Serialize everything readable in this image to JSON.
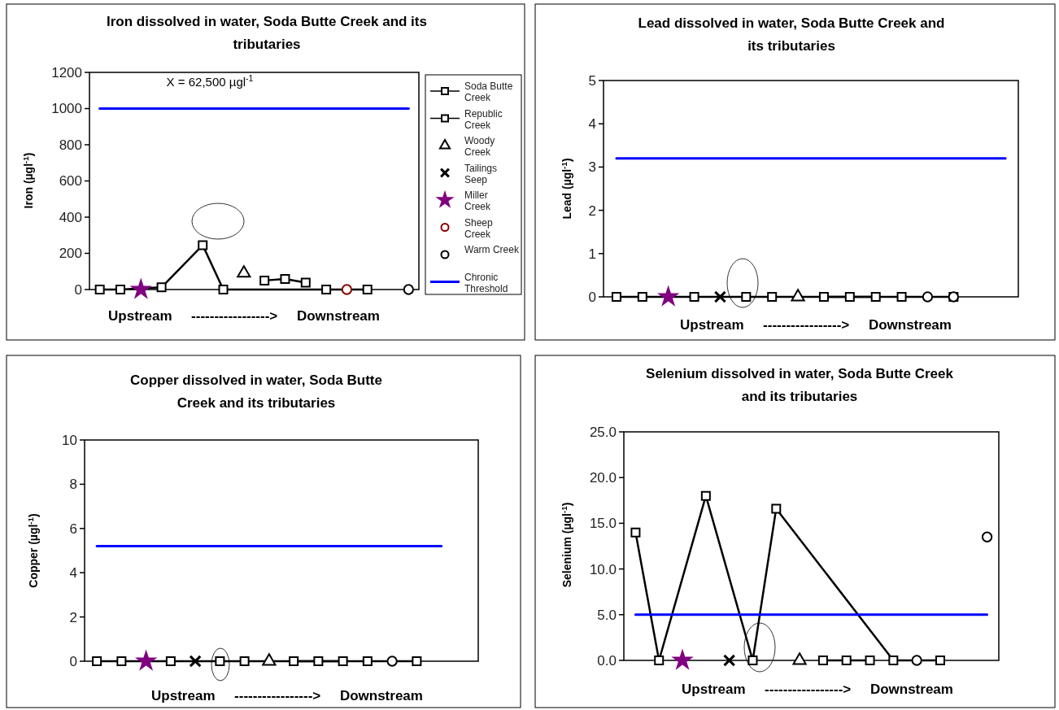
{
  "chart_data": [
    {
      "type": "line",
      "title": "Iron dissolved in water, Soda Butte Creek and its tributaries",
      "ylabel": "Iron (µgl$^{-1}$)",
      "xlabel": "Upstream     ----------------->     Downstream",
      "annotations": [
        "X = 62,500 µgl$^{-1}$"
      ],
      "categories": [
        null,
        null,
        null,
        null,
        null,
        null,
        null,
        null,
        null,
        null,
        null,
        null,
        null,
        null,
        null,
        null
      ],
      "ylim": [
        0,
        1200
      ],
      "yticks": [
        0,
        200,
        400,
        600,
        800,
        1000,
        1200
      ],
      "tick_labels": "y",
      "legend": "right",
      "series": [
        {
          "name": "Soda Butte Creek",
          "color": "#000000",
          "marker": "square",
          "values": [
            0,
            0,
            null,
            12,
            null,
            245,
            0,
            null,
            null,
            null,
            null,
            0,
            null,
            0,
            null,
            null
          ]
        },
        {
          "name": "Republic Creek",
          "color": "#000000",
          "marker": "square",
          "values": [
            null,
            null,
            null,
            null,
            null,
            null,
            null,
            null,
            50,
            58,
            38,
            null,
            null,
            null,
            null,
            null
          ]
        },
        {
          "name": "Woody Creek",
          "type": "scatter",
          "color": "#000000",
          "marker": "triangle",
          "values": [
            null,
            null,
            null,
            null,
            null,
            null,
            null,
            90,
            null,
            null,
            null,
            null,
            null,
            null,
            null,
            null
          ]
        },
        {
          "name": "Tailings Seep",
          "type": "scatter",
          "color": "#000000",
          "marker": "cross",
          "values": [
            null,
            null,
            null,
            null,
            null,
            null,
            null,
            null,
            null,
            null,
            null,
            null,
            null,
            null,
            null,
            null
          ]
        },
        {
          "name": "Miller Creek",
          "type": "scatter",
          "color": "#800080",
          "marker": "star",
          "values": [
            null,
            null,
            0,
            null,
            null,
            null,
            null,
            null,
            null,
            null,
            null,
            null,
            null,
            null,
            null,
            null
          ]
        },
        {
          "name": "Sheep Creek",
          "type": "scatter",
          "color": "#8b0000",
          "marker": "circle",
          "values": [
            null,
            null,
            null,
            null,
            null,
            null,
            null,
            null,
            null,
            null,
            null,
            null,
            0,
            null,
            null,
            null
          ]
        },
        {
          "name": "Warm Creek",
          "type": "scatter",
          "color": "#000000",
          "marker": "circle",
          "values": [
            null,
            null,
            null,
            null,
            null,
            null,
            null,
            null,
            null,
            null,
            null,
            null,
            null,
            null,
            null,
            0
          ]
        },
        {
          "name": "Chronic Threshold",
          "color": "#0000ff",
          "marker": "none",
          "values": [
            1000,
            1000,
            1000,
            1000,
            1000,
            1000,
            1000,
            1000,
            1000,
            1000,
            1000,
            1000,
            1000,
            1000,
            1000,
            1000
          ]
        }
      ]
    },
    {
      "type": "line",
      "title": "Lead dissolved in water, Soda Butte Creek and its tributaries",
      "ylabel": "Lead (µgl$^{-1}$)",
      "xlabel": "Upstream     ----------------->     Downstream",
      "categories": [
        null,
        null,
        null,
        null,
        null,
        null,
        null,
        null,
        null,
        null,
        null,
        null,
        null,
        null,
        null,
        null
      ],
      "ylim": [
        0,
        5
      ],
      "yticks": [
        0,
        1,
        2,
        3,
        4,
        5
      ],
      "tick_labels": "y",
      "series": [
        {
          "color": "#000000",
          "marker": "square",
          "values": [
            0,
            0,
            null,
            0,
            null,
            0,
            0,
            null,
            null,
            null,
            null,
            0,
            null,
            0,
            null,
            null
          ]
        },
        {
          "color": "#000000",
          "marker": "square",
          "values": [
            null,
            null,
            null,
            null,
            null,
            null,
            null,
            null,
            0,
            0,
            0,
            null,
            null,
            null,
            null,
            null
          ]
        },
        {
          "type": "scatter",
          "color": "#000000",
          "marker": "triangle",
          "values": [
            null,
            null,
            null,
            null,
            null,
            null,
            null,
            0,
            null,
            null,
            null,
            null,
            null,
            null,
            null,
            null
          ]
        },
        {
          "type": "scatter",
          "color": "#000000",
          "marker": "cross",
          "values": [
            null,
            null,
            null,
            null,
            0,
            null,
            null,
            null,
            null,
            null,
            null,
            null,
            null,
            null,
            null,
            null
          ]
        },
        {
          "type": "scatter",
          "color": "#800080",
          "marker": "star",
          "values": [
            null,
            null,
            0,
            null,
            null,
            null,
            null,
            null,
            null,
            null,
            null,
            null,
            null,
            null,
            null,
            null
          ]
        },
        {
          "type": "scatter",
          "color": "#000000",
          "marker": "circle",
          "values": [
            null,
            null,
            null,
            null,
            null,
            null,
            null,
            null,
            null,
            null,
            null,
            null,
            0,
            null,
            null,
            null
          ]
        },
        {
          "type": "scatter",
          "color": "#000000",
          "marker": "circle",
          "values": [
            null,
            null,
            null,
            null,
            null,
            null,
            null,
            null,
            null,
            null,
            null,
            null,
            null,
            0,
            null,
            null
          ]
        },
        {
          "color": "#0000ff",
          "marker": "none",
          "values": [
            3.2,
            3.2,
            3.2,
            3.2,
            3.2,
            3.2,
            3.2,
            3.2,
            3.2,
            3.2,
            3.2,
            3.2,
            3.2,
            3.2,
            3.2,
            3.2
          ]
        }
      ]
    },
    {
      "type": "line",
      "title": "Copper dissolved in water, Soda Butte Creek and its tributaries",
      "ylabel": "Copper (µgl$^{-1}$)",
      "xlabel": "Upstream     ----------------->     Downstream",
      "categories": [
        null,
        null,
        null,
        null,
        null,
        null,
        null,
        null,
        null,
        null,
        null,
        null,
        null,
        null,
        null,
        null
      ],
      "ylim": [
        0,
        10
      ],
      "yticks": [
        0,
        2,
        4,
        6,
        8,
        10
      ],
      "tick_labels": "y",
      "series": [
        {
          "color": "#000000",
          "marker": "square",
          "values": [
            0,
            0,
            null,
            0,
            null,
            0,
            0,
            null,
            null,
            null,
            null,
            0,
            null,
            0,
            null,
            null
          ]
        },
        {
          "color": "#000000",
          "marker": "square",
          "values": [
            null,
            null,
            null,
            null,
            null,
            null,
            null,
            null,
            0,
            0,
            0,
            null,
            null,
            null,
            null,
            null
          ]
        },
        {
          "type": "scatter",
          "color": "#000000",
          "marker": "triangle",
          "values": [
            null,
            null,
            null,
            null,
            null,
            null,
            null,
            0,
            null,
            null,
            null,
            null,
            null,
            null,
            null,
            null
          ]
        },
        {
          "type": "scatter",
          "color": "#000000",
          "marker": "cross",
          "values": [
            null,
            null,
            null,
            null,
            0,
            null,
            null,
            null,
            null,
            null,
            null,
            null,
            null,
            null,
            null,
            null
          ]
        },
        {
          "type": "scatter",
          "color": "#800080",
          "marker": "star",
          "values": [
            null,
            null,
            0,
            null,
            null,
            null,
            null,
            null,
            null,
            null,
            null,
            null,
            null,
            null,
            null,
            null
          ]
        },
        {
          "type": "scatter",
          "color": "#000000",
          "marker": "circle",
          "values": [
            null,
            null,
            null,
            null,
            null,
            null,
            null,
            null,
            null,
            null,
            null,
            null,
            0,
            null,
            null,
            null
          ]
        },
        {
          "color": "#0000ff",
          "marker": "none",
          "values": [
            5.2,
            5.2,
            5.2,
            5.2,
            5.2,
            5.2,
            5.2,
            5.2,
            5.2,
            5.2,
            5.2,
            5.2,
            5.2,
            5.2,
            5.2,
            null
          ]
        }
      ]
    },
    {
      "type": "line",
      "title": "Selenium dissolved in water, Soda Butte Creek and its tributaries",
      "ylabel": "Selenium (µgl$^{-1}$)",
      "xlabel": "Upstream     ----------------->     Downstream",
      "categories": [
        null,
        null,
        null,
        null,
        null,
        null,
        null,
        null,
        null,
        null,
        null,
        null,
        null,
        null,
        null,
        null
      ],
      "ylim": [
        0,
        25
      ],
      "yticks": [
        {
          "value": 0,
          "label": "0.0"
        },
        {
          "value": 5,
          "label": "5.0"
        },
        {
          "value": 10,
          "label": "10.0"
        },
        {
          "value": 15,
          "label": "15.0"
        },
        {
          "value": 20,
          "label": "20.0"
        },
        {
          "value": 25,
          "label": "25.0"
        }
      ],
      "tick_labels": "y",
      "series": [
        {
          "color": "#000000",
          "marker": "square",
          "values": [
            14,
            0,
            null,
            18,
            null,
            0,
            16.6,
            null,
            null,
            null,
            null,
            0,
            null,
            0,
            null,
            null
          ]
        },
        {
          "color": "#000000",
          "marker": "square",
          "values": [
            null,
            null,
            null,
            null,
            null,
            null,
            null,
            null,
            0,
            0,
            0,
            null,
            null,
            null,
            null,
            null
          ]
        },
        {
          "type": "scatter",
          "color": "#000000",
          "marker": "triangle",
          "values": [
            null,
            null,
            null,
            null,
            null,
            null,
            null,
            0,
            null,
            null,
            null,
            null,
            null,
            null,
            null,
            null
          ]
        },
        {
          "type": "scatter",
          "color": "#000000",
          "marker": "cross",
          "values": [
            null,
            null,
            null,
            null,
            0,
            null,
            null,
            null,
            null,
            null,
            null,
            null,
            null,
            null,
            null,
            null
          ]
        },
        {
          "type": "scatter",
          "color": "#800080",
          "marker": "star",
          "values": [
            null,
            null,
            0,
            null,
            null,
            null,
            null,
            null,
            null,
            null,
            null,
            null,
            null,
            null,
            null,
            null
          ]
        },
        {
          "type": "scatter",
          "color": "#000000",
          "marker": "circle",
          "values": [
            null,
            null,
            null,
            null,
            null,
            null,
            null,
            null,
            null,
            null,
            null,
            null,
            0,
            null,
            null,
            null
          ]
        },
        {
          "type": "scatter",
          "color": "#000000",
          "marker": "circle",
          "values": [
            null,
            null,
            null,
            null,
            null,
            null,
            null,
            null,
            null,
            null,
            null,
            null,
            null,
            null,
            null,
            13.5
          ]
        },
        {
          "color": "#0000ff",
          "marker": "none",
          "values": [
            5,
            5,
            5,
            5,
            5,
            5,
            5,
            5,
            5,
            5,
            5,
            5,
            5,
            5,
            5,
            5
          ]
        }
      ]
    }
  ]
}
